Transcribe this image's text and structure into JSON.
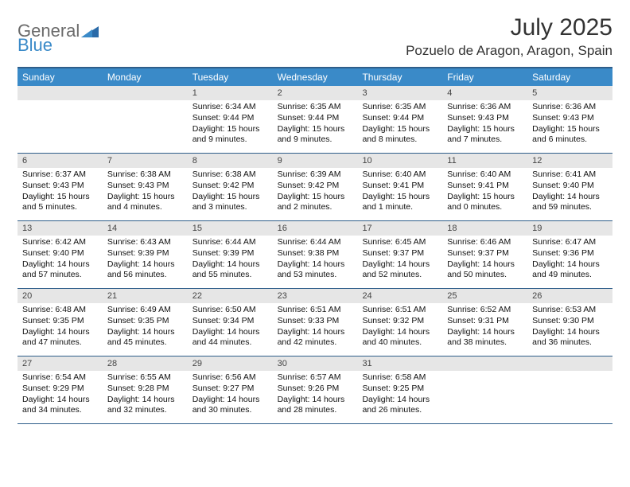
{
  "logo": {
    "text1": "General",
    "text2": "Blue"
  },
  "title": "July 2025",
  "location": "Pozuelo de Aragon, Aragon, Spain",
  "colors": {
    "header_bg": "#3a8ac8",
    "header_text": "#ffffff",
    "border": "#2f5e8a",
    "daynum_bg": "#e6e6e6",
    "body_bg": "#ffffff"
  },
  "days_of_week": [
    "Sunday",
    "Monday",
    "Tuesday",
    "Wednesday",
    "Thursday",
    "Friday",
    "Saturday"
  ],
  "weeks": [
    [
      null,
      null,
      {
        "n": "1",
        "sr": "Sunrise: 6:34 AM",
        "ss": "Sunset: 9:44 PM",
        "dl": "Daylight: 15 hours and 9 minutes."
      },
      {
        "n": "2",
        "sr": "Sunrise: 6:35 AM",
        "ss": "Sunset: 9:44 PM",
        "dl": "Daylight: 15 hours and 9 minutes."
      },
      {
        "n": "3",
        "sr": "Sunrise: 6:35 AM",
        "ss": "Sunset: 9:44 PM",
        "dl": "Daylight: 15 hours and 8 minutes."
      },
      {
        "n": "4",
        "sr": "Sunrise: 6:36 AM",
        "ss": "Sunset: 9:43 PM",
        "dl": "Daylight: 15 hours and 7 minutes."
      },
      {
        "n": "5",
        "sr": "Sunrise: 6:36 AM",
        "ss": "Sunset: 9:43 PM",
        "dl": "Daylight: 15 hours and 6 minutes."
      }
    ],
    [
      {
        "n": "6",
        "sr": "Sunrise: 6:37 AM",
        "ss": "Sunset: 9:43 PM",
        "dl": "Daylight: 15 hours and 5 minutes."
      },
      {
        "n": "7",
        "sr": "Sunrise: 6:38 AM",
        "ss": "Sunset: 9:43 PM",
        "dl": "Daylight: 15 hours and 4 minutes."
      },
      {
        "n": "8",
        "sr": "Sunrise: 6:38 AM",
        "ss": "Sunset: 9:42 PM",
        "dl": "Daylight: 15 hours and 3 minutes."
      },
      {
        "n": "9",
        "sr": "Sunrise: 6:39 AM",
        "ss": "Sunset: 9:42 PM",
        "dl": "Daylight: 15 hours and 2 minutes."
      },
      {
        "n": "10",
        "sr": "Sunrise: 6:40 AM",
        "ss": "Sunset: 9:41 PM",
        "dl": "Daylight: 15 hours and 1 minute."
      },
      {
        "n": "11",
        "sr": "Sunrise: 6:40 AM",
        "ss": "Sunset: 9:41 PM",
        "dl": "Daylight: 15 hours and 0 minutes."
      },
      {
        "n": "12",
        "sr": "Sunrise: 6:41 AM",
        "ss": "Sunset: 9:40 PM",
        "dl": "Daylight: 14 hours and 59 minutes."
      }
    ],
    [
      {
        "n": "13",
        "sr": "Sunrise: 6:42 AM",
        "ss": "Sunset: 9:40 PM",
        "dl": "Daylight: 14 hours and 57 minutes."
      },
      {
        "n": "14",
        "sr": "Sunrise: 6:43 AM",
        "ss": "Sunset: 9:39 PM",
        "dl": "Daylight: 14 hours and 56 minutes."
      },
      {
        "n": "15",
        "sr": "Sunrise: 6:44 AM",
        "ss": "Sunset: 9:39 PM",
        "dl": "Daylight: 14 hours and 55 minutes."
      },
      {
        "n": "16",
        "sr": "Sunrise: 6:44 AM",
        "ss": "Sunset: 9:38 PM",
        "dl": "Daylight: 14 hours and 53 minutes."
      },
      {
        "n": "17",
        "sr": "Sunrise: 6:45 AM",
        "ss": "Sunset: 9:37 PM",
        "dl": "Daylight: 14 hours and 52 minutes."
      },
      {
        "n": "18",
        "sr": "Sunrise: 6:46 AM",
        "ss": "Sunset: 9:37 PM",
        "dl": "Daylight: 14 hours and 50 minutes."
      },
      {
        "n": "19",
        "sr": "Sunrise: 6:47 AM",
        "ss": "Sunset: 9:36 PM",
        "dl": "Daylight: 14 hours and 49 minutes."
      }
    ],
    [
      {
        "n": "20",
        "sr": "Sunrise: 6:48 AM",
        "ss": "Sunset: 9:35 PM",
        "dl": "Daylight: 14 hours and 47 minutes."
      },
      {
        "n": "21",
        "sr": "Sunrise: 6:49 AM",
        "ss": "Sunset: 9:35 PM",
        "dl": "Daylight: 14 hours and 45 minutes."
      },
      {
        "n": "22",
        "sr": "Sunrise: 6:50 AM",
        "ss": "Sunset: 9:34 PM",
        "dl": "Daylight: 14 hours and 44 minutes."
      },
      {
        "n": "23",
        "sr": "Sunrise: 6:51 AM",
        "ss": "Sunset: 9:33 PM",
        "dl": "Daylight: 14 hours and 42 minutes."
      },
      {
        "n": "24",
        "sr": "Sunrise: 6:51 AM",
        "ss": "Sunset: 9:32 PM",
        "dl": "Daylight: 14 hours and 40 minutes."
      },
      {
        "n": "25",
        "sr": "Sunrise: 6:52 AM",
        "ss": "Sunset: 9:31 PM",
        "dl": "Daylight: 14 hours and 38 minutes."
      },
      {
        "n": "26",
        "sr": "Sunrise: 6:53 AM",
        "ss": "Sunset: 9:30 PM",
        "dl": "Daylight: 14 hours and 36 minutes."
      }
    ],
    [
      {
        "n": "27",
        "sr": "Sunrise: 6:54 AM",
        "ss": "Sunset: 9:29 PM",
        "dl": "Daylight: 14 hours and 34 minutes."
      },
      {
        "n": "28",
        "sr": "Sunrise: 6:55 AM",
        "ss": "Sunset: 9:28 PM",
        "dl": "Daylight: 14 hours and 32 minutes."
      },
      {
        "n": "29",
        "sr": "Sunrise: 6:56 AM",
        "ss": "Sunset: 9:27 PM",
        "dl": "Daylight: 14 hours and 30 minutes."
      },
      {
        "n": "30",
        "sr": "Sunrise: 6:57 AM",
        "ss": "Sunset: 9:26 PM",
        "dl": "Daylight: 14 hours and 28 minutes."
      },
      {
        "n": "31",
        "sr": "Sunrise: 6:58 AM",
        "ss": "Sunset: 9:25 PM",
        "dl": "Daylight: 14 hours and 26 minutes."
      },
      null,
      null
    ]
  ]
}
